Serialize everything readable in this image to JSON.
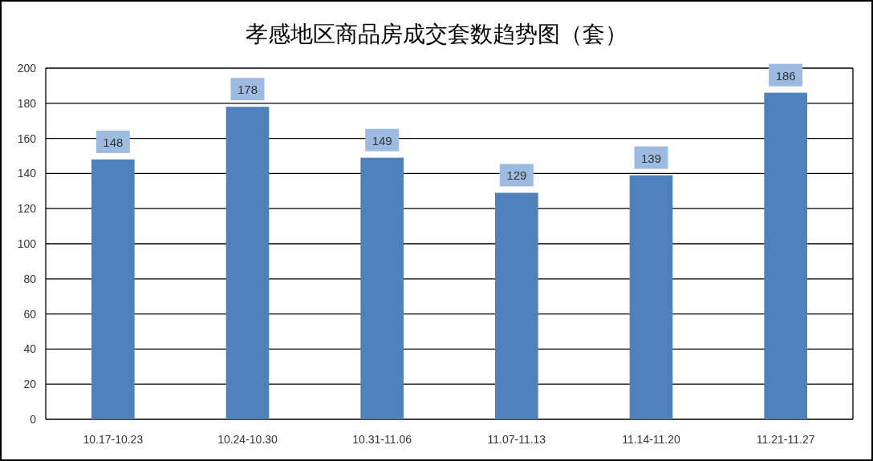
{
  "chart_data": {
    "type": "bar",
    "title": "孝感地区商品房成交套数趋势图（套）",
    "categories": [
      "10.17-10.23",
      "10.24-10.30",
      "10.31-11.06",
      "11.07-11.13",
      "11.14-11.20",
      "11.21-11.27"
    ],
    "values": [
      148,
      178,
      149,
      129,
      139,
      186
    ],
    "color": "#4f81bd",
    "ylim": [
      0,
      200
    ],
    "yticks": [
      0,
      20,
      40,
      60,
      80,
      100,
      120,
      140,
      160,
      180,
      200
    ],
    "grid": "y",
    "data_labels": true
  }
}
